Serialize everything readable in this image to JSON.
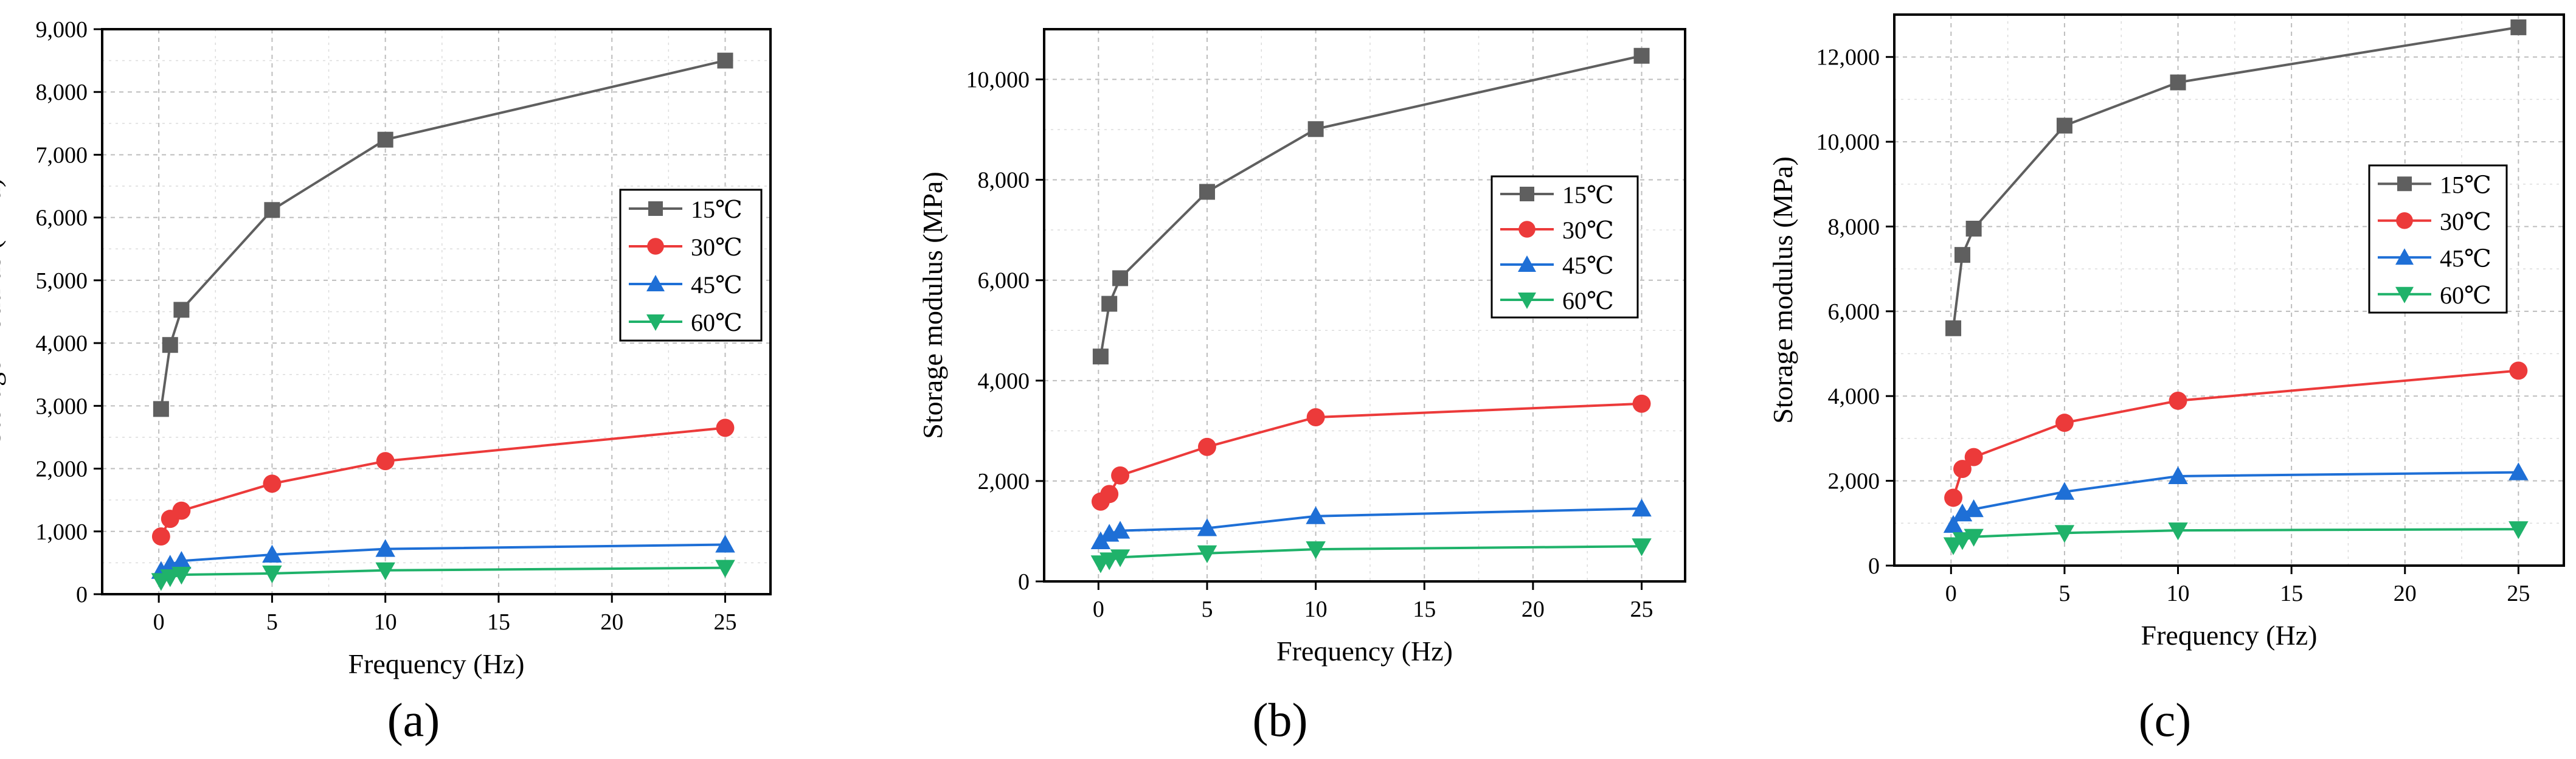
{
  "chart_data": [
    {
      "panel_label": "(a)",
      "type": "line",
      "xlabel": "Frequency (Hz)",
      "ylabel": "Storage modulus (MPa)",
      "xlim": [
        -2.5,
        27
      ],
      "ylim": [
        0,
        9000
      ],
      "xticks": [
        0,
        5,
        10,
        15,
        20,
        25
      ],
      "yticks": [
        0,
        1000,
        2000,
        3000,
        4000,
        5000,
        6000,
        7000,
        8000,
        9000
      ],
      "ytick_labels": [
        "0",
        "1,000",
        "2,000",
        "3,000",
        "4,000",
        "5,000",
        "6,000",
        "7,000",
        "8,000",
        "9,000"
      ],
      "grid": true,
      "legend_placement": "center-right",
      "x": [
        0.1,
        0.5,
        1,
        5,
        10,
        25
      ],
      "series": [
        {
          "name": "15℃",
          "color": "#5f5f5f",
          "marker": "square",
          "values": [
            2950,
            3970,
            4530,
            6120,
            7240,
            8500
          ]
        },
        {
          "name": "30℃",
          "color": "#ec3a3a",
          "marker": "circle",
          "values": [
            920,
            1200,
            1330,
            1760,
            2120,
            2650
          ]
        },
        {
          "name": "45℃",
          "color": "#1e6fd6",
          "marker": "triangle-up",
          "values": [
            370,
            470,
            530,
            630,
            720,
            790
          ]
        },
        {
          "name": "60℃",
          "color": "#1fb26a",
          "marker": "triangle-down",
          "values": [
            210,
            270,
            310,
            330,
            380,
            420
          ]
        }
      ]
    },
    {
      "panel_label": "(b)",
      "type": "line",
      "xlabel": "Frequency (Hz)",
      "ylabel": "Storage modulus (MPa)",
      "xlim": [
        -2.5,
        27
      ],
      "ylim": [
        0,
        11000
      ],
      "xticks": [
        0,
        5,
        10,
        15,
        20,
        25
      ],
      "yticks": [
        0,
        2000,
        4000,
        6000,
        8000,
        10000
      ],
      "ytick_labels": [
        "0",
        "2,000",
        "4,000",
        "6,000",
        "8,000",
        "10,000"
      ],
      "grid": true,
      "legend_placement": "center-right",
      "x": [
        0.1,
        0.5,
        1,
        5,
        10,
        25
      ],
      "series": [
        {
          "name": "15℃",
          "color": "#5f5f5f",
          "marker": "square",
          "values": [
            4480,
            5530,
            6040,
            7760,
            9010,
            10470
          ]
        },
        {
          "name": "30℃",
          "color": "#ec3a3a",
          "marker": "circle",
          "values": [
            1590,
            1740,
            2110,
            2680,
            3270,
            3540
          ]
        },
        {
          "name": "45℃",
          "color": "#1e6fd6",
          "marker": "triangle-up",
          "values": [
            800,
            950,
            1010,
            1060,
            1300,
            1450
          ]
        },
        {
          "name": "60℃",
          "color": "#1fb26a",
          "marker": "triangle-down",
          "values": [
            360,
            420,
            480,
            560,
            640,
            700
          ]
        }
      ]
    },
    {
      "panel_label": "(c)",
      "type": "line",
      "xlabel": "Frequency (Hz)",
      "ylabel": "Storage modulus (MPa)",
      "xlim": [
        -2.5,
        27
      ],
      "ylim": [
        0,
        13000
      ],
      "xticks": [
        0,
        5,
        10,
        15,
        20,
        25
      ],
      "yticks": [
        0,
        2000,
        4000,
        6000,
        8000,
        10000,
        12000
      ],
      "ytick_labels": [
        "0",
        "2,000",
        "4,000",
        "6,000",
        "8,000",
        "10,000",
        "12,000"
      ],
      "grid": true,
      "legend_placement": "center-right",
      "x": [
        0.1,
        0.5,
        1,
        5,
        10,
        25
      ],
      "series": [
        {
          "name": "15℃",
          "color": "#5f5f5f",
          "marker": "square",
          "values": [
            5600,
            7330,
            7950,
            10380,
            11400,
            12700
          ]
        },
        {
          "name": "30℃",
          "color": "#ec3a3a",
          "marker": "circle",
          "values": [
            1600,
            2280,
            2560,
            3370,
            3890,
            4600
          ]
        },
        {
          "name": "45℃",
          "color": "#1e6fd6",
          "marker": "triangle-up",
          "values": [
            960,
            1230,
            1330,
            1740,
            2110,
            2200
          ]
        },
        {
          "name": "60℃",
          "color": "#1fb26a",
          "marker": "triangle-down",
          "values": [
            480,
            600,
            680,
            770,
            830,
            860
          ]
        }
      ]
    }
  ]
}
